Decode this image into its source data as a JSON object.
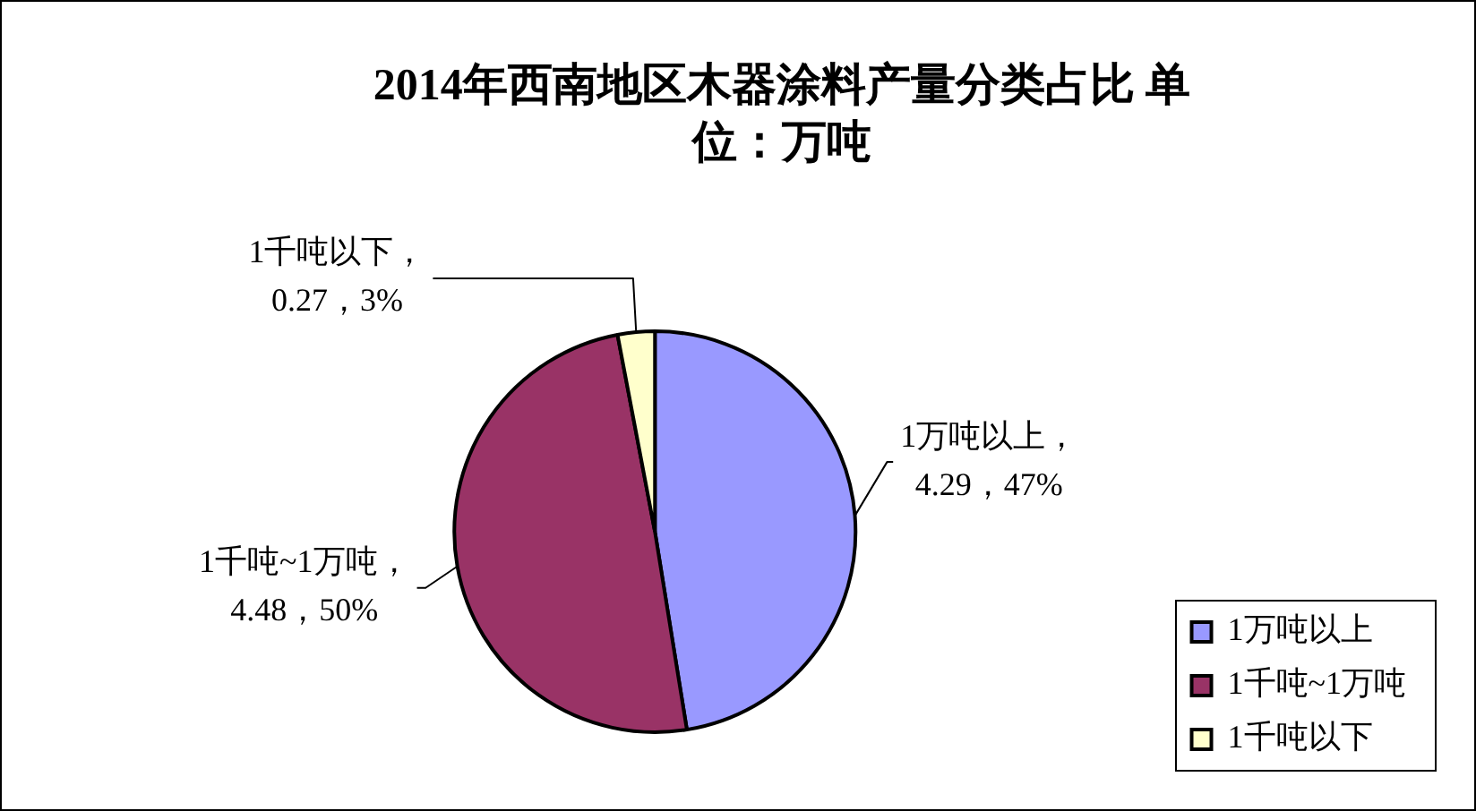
{
  "chart_data": {
    "type": "pie",
    "title": "2014年西南地区木器涂料产量分类占比 单位：万吨",
    "categories": [
      "1万吨以上",
      "1千吨~1万吨",
      "1千吨以下"
    ],
    "values": [
      4.29,
      4.48,
      0.27
    ],
    "colors": [
      "#9999ff",
      "#993366",
      "#ffffcc"
    ],
    "value_labels": [
      "1万吨以上，\n4.29，47%",
      "1千吨~1万吨，\n4.48，50%",
      "1千吨以下，\n0.27，3%"
    ],
    "legend": "bottom right"
  }
}
